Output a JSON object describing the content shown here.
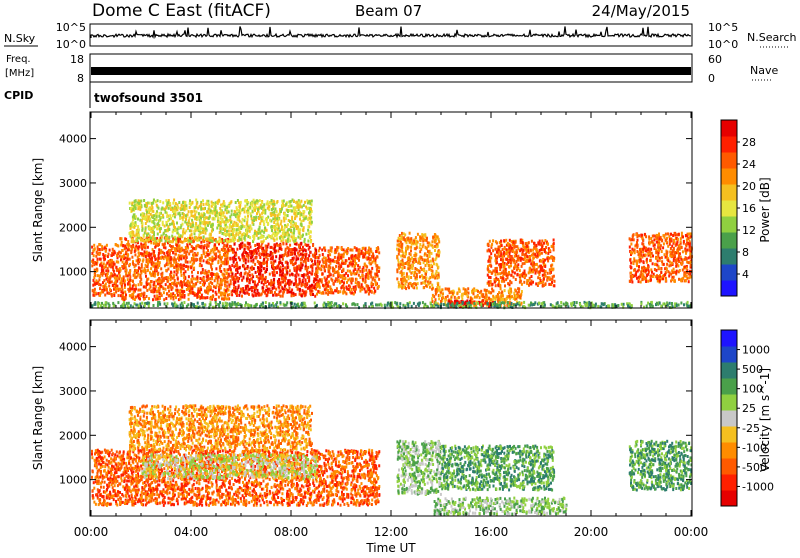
{
  "header": {
    "title": "Dome C East (fitACF)",
    "beam": "Beam 07",
    "date": "24/May/2015"
  },
  "status": {
    "nsky_label": "N.Sky",
    "nsearch_label": "N.Search",
    "noise_ticks_left": [
      "10^5",
      "10^0"
    ],
    "noise_ticks_right": [
      "10^5",
      "10^0"
    ],
    "freq_label_lines": [
      "Freq.",
      "[MHz]"
    ],
    "freq_ticks": [
      "18",
      "8"
    ],
    "nave_label": "Nave",
    "nave_ticks": [
      "60",
      "0"
    ],
    "cpid_label": "CPID",
    "cpid_value": "twofsound 3501"
  },
  "chart_data": [
    {
      "type": "heatmap",
      "panel": "power",
      "ylabel": "Slant Range [km]",
      "xlabel": "Time UT",
      "x_ticks": [
        "00:00",
        "04:00",
        "08:00",
        "12:00",
        "16:00",
        "20:00",
        "00:00"
      ],
      "x_range_hours": [
        0,
        24
      ],
      "y_ticks": [
        1000,
        2000,
        3000,
        4000
      ],
      "y_range_km": [
        180,
        4600
      ],
      "colorbar": {
        "label": "Power [dB]",
        "ticks": [
          "4",
          "8",
          "12",
          "16",
          "20",
          "24",
          "28"
        ],
        "colors": [
          "#1e14ff",
          "#1e46c8",
          "#2d7d6e",
          "#4aa04a",
          "#90d040",
          "#e6e640",
          "#f5c020",
          "#ff8c00",
          "#ff5a00",
          "#ff2000",
          "#e60000"
        ]
      },
      "regions": [
        {
          "t": [
            0.0,
            1.1
          ],
          "r": [
            480,
            1650
          ],
          "level": 8
        },
        {
          "t": [
            1.1,
            5.6
          ],
          "r": [
            400,
            1800
          ],
          "level": 8
        },
        {
          "t": [
            5.6,
            9.0
          ],
          "r": [
            480,
            1680
          ],
          "level": 9
        },
        {
          "t": [
            9.0,
            11.5
          ],
          "r": [
            520,
            1580
          ],
          "level": 8
        },
        {
          "t": [
            1.5,
            8.8
          ],
          "r": [
            1700,
            2650
          ],
          "level": 5
        },
        {
          "t": [
            12.2,
            13.9
          ],
          "r": [
            650,
            1900
          ],
          "level": 7
        },
        {
          "t": [
            15.8,
            18.5
          ],
          "r": [
            700,
            1750
          ],
          "level": 8
        },
        {
          "t": [
            21.5,
            24.0
          ],
          "r": [
            800,
            1900
          ],
          "level": 8
        },
        {
          "t": [
            13.6,
            17.2
          ],
          "r": [
            250,
            650
          ],
          "level": 7
        },
        {
          "t": [
            14.2,
            16.1
          ],
          "r": [
            230,
            380
          ],
          "level": 10
        },
        {
          "t": [
            0.0,
            24.0
          ],
          "r": [
            220,
            340
          ],
          "level": 3
        }
      ]
    },
    {
      "type": "heatmap",
      "panel": "velocity",
      "ylabel": "Slant Range [km]",
      "xlabel": "Time UT",
      "x_ticks": [
        "00:00",
        "04:00",
        "08:00",
        "12:00",
        "16:00",
        "20:00",
        "00:00"
      ],
      "x_range_hours": [
        0,
        24
      ],
      "y_ticks": [
        1000,
        2000,
        3000,
        4000
      ],
      "y_range_km": [
        180,
        4600
      ],
      "colorbar": {
        "label": "Velocity [m s^-1]",
        "ticks": [
          "1000",
          "500",
          "100",
          "25",
          "-25",
          "-100",
          "-500",
          "-1000"
        ],
        "colors": [
          "#1e14ff",
          "#1e46c8",
          "#2d7d6e",
          "#4aa04a",
          "#90d040",
          "#c8c8c8",
          "#f5c020",
          "#ff8c00",
          "#ff5a00",
          "#ff2000",
          "#e60000"
        ]
      },
      "regions": [
        {
          "t": [
            0.0,
            11.5
          ],
          "r": [
            450,
            1700
          ],
          "level": 8
        },
        {
          "t": [
            1.5,
            8.8
          ],
          "r": [
            1700,
            2700
          ],
          "level": 7
        },
        {
          "t": [
            2.0,
            9.0
          ],
          "r": [
            1050,
            1600
          ],
          "level": 5
        },
        {
          "t": [
            12.2,
            14.0
          ],
          "r": [
            700,
            1900
          ],
          "level": 4
        },
        {
          "t": [
            14.0,
            18.5
          ],
          "r": [
            800,
            1800
          ],
          "level": 3
        },
        {
          "t": [
            21.5,
            24.0
          ],
          "r": [
            800,
            1900
          ],
          "level": 3
        },
        {
          "t": [
            13.7,
            19.0
          ],
          "r": [
            250,
            620
          ],
          "level": 4
        }
      ]
    }
  ]
}
